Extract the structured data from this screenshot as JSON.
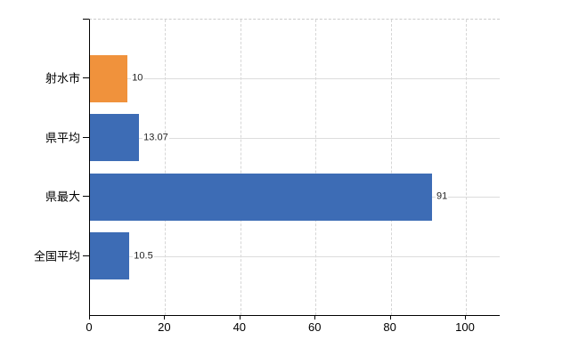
{
  "chart_data": {
    "type": "bar",
    "orientation": "horizontal",
    "title": "",
    "xlabel": "",
    "ylabel": "",
    "categories": [
      "射水市",
      "県平均",
      "県最大",
      "全国平均"
    ],
    "values": [
      10,
      13.07,
      91,
      10.5
    ],
    "value_labels": [
      "10",
      "13.07",
      "91",
      "10.5"
    ],
    "bar_colors": [
      "#f0923c",
      "#3d6cb5",
      "#3d6cb5",
      "#3d6cb5"
    ],
    "x_ticks": [
      0,
      20,
      40,
      60,
      80,
      100
    ],
    "x_tick_labels": [
      "0",
      "20",
      "40",
      "60",
      "80",
      "100"
    ],
    "xlim": [
      0,
      109
    ],
    "grid": true,
    "legend": false,
    "style": {
      "accent_orange": "#f0923c",
      "accent_blue": "#3d6cb5",
      "grid_solid_color": "#dcdcdc",
      "grid_dashed_color": "#d6d6d6",
      "top_border_color": "#cccccc",
      "axis_color": "#000000",
      "value_text_color": "#222222",
      "label_text_color": "#000000",
      "background": "#ffffff"
    }
  }
}
